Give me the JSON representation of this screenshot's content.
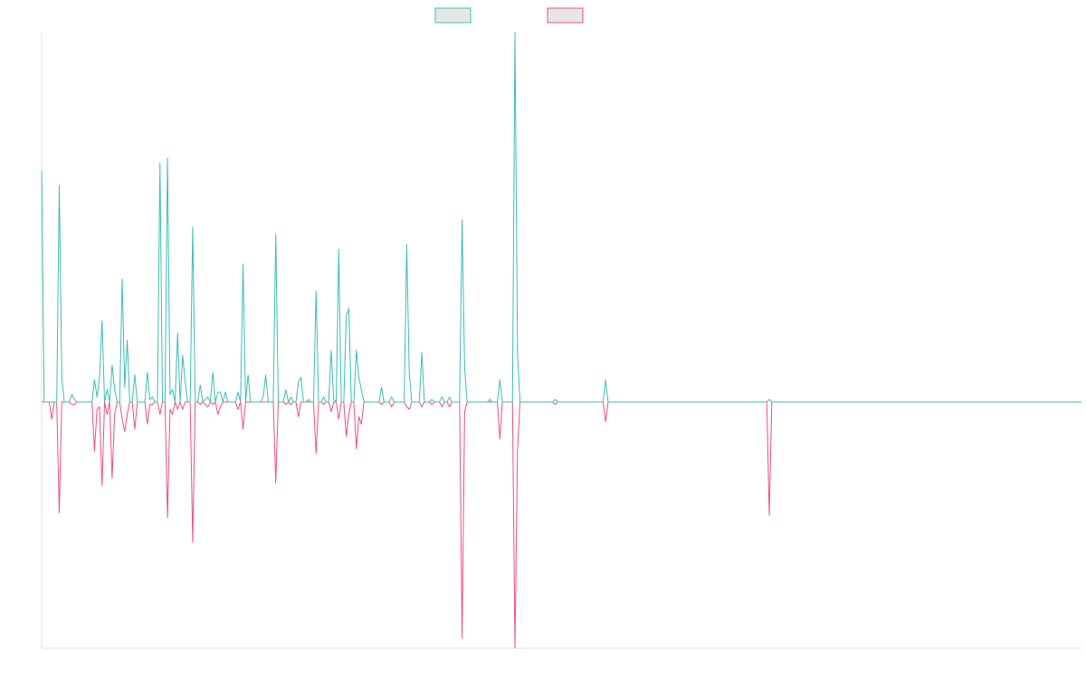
{
  "chart_data": {
    "type": "line",
    "title": "",
    "xlabel": "",
    "ylabel": "",
    "grid": false,
    "legend": "top-center",
    "ylim": [
      -1.0,
      1.5
    ],
    "colors": {
      "series_a": "#3dbdb4",
      "series_b": "#f0507a",
      "axis": "#e2e2e2",
      "legend_fill": "#e6e6e6"
    },
    "series": [
      {
        "key": "a",
        "values": [
          0.94,
          0,
          0,
          0,
          0,
          0,
          0,
          0.88,
          0.1,
          0,
          0,
          0,
          0.03,
          0.01,
          0,
          0,
          0,
          0,
          0,
          0,
          0,
          0.09,
          0.02,
          0.1,
          0.33,
          0,
          0.05,
          0,
          0.15,
          0.05,
          0,
          0,
          0.5,
          0.06,
          0.25,
          0,
          0,
          0.11,
          0,
          0,
          0,
          0,
          0.12,
          0.01,
          0.02,
          0,
          0,
          0.97,
          0,
          0,
          0.99,
          0.03,
          0.05,
          0,
          0.28,
          0,
          0.19,
          0.08,
          0,
          0,
          0.71,
          0,
          0,
          0.07,
          0,
          0.01,
          0.02,
          0,
          0.12,
          0,
          0.04,
          0.04,
          0,
          0.04,
          0,
          0,
          0,
          0,
          0.04,
          0,
          0.56,
          0,
          0.11,
          0,
          0,
          0,
          0,
          0,
          0.02,
          0.11,
          0,
          0,
          0,
          0.68,
          0,
          0,
          0,
          0.05,
          0,
          0.02,
          0,
          0,
          0.08,
          0.1,
          0,
          0,
          0.01,
          0,
          0,
          0.45,
          0,
          0,
          0.02,
          0,
          0,
          0.21,
          0.01,
          0,
          0.62,
          0,
          0,
          0.35,
          0.38,
          0,
          0,
          0.21,
          0.1,
          0.05,
          0,
          0,
          0,
          0,
          0,
          0,
          0,
          0.06,
          0,
          0,
          0,
          0.02,
          0,
          0,
          0,
          0,
          0,
          0.64,
          0.12,
          0,
          0,
          0,
          0,
          0.2,
          0,
          0,
          0,
          0.01,
          0,
          0,
          0,
          0.02,
          0,
          0,
          0.02,
          0,
          0,
          0,
          0,
          0.74,
          0.14,
          0,
          0,
          0,
          0,
          0,
          0,
          0,
          0,
          0,
          0.01,
          0,
          0,
          0,
          0.09,
          0,
          0,
          0,
          0,
          0,
          1.5,
          0.2,
          0,
          0,
          0,
          0,
          0,
          0,
          0,
          0,
          0,
          0,
          0,
          0,
          0,
          0,
          0.01,
          0,
          0,
          0,
          0,
          0,
          0,
          0,
          0,
          0,
          0,
          0,
          0,
          0,
          0,
          0,
          0,
          0,
          0,
          0,
          0.09,
          0,
          0,
          0,
          0,
          0,
          0,
          0,
          0,
          0,
          0,
          0,
          0,
          0,
          0,
          0,
          0,
          0,
          0,
          0,
          0,
          0,
          0,
          0,
          0,
          0,
          0,
          0,
          0,
          0,
          0,
          0,
          0,
          0,
          0,
          0,
          0,
          0,
          0,
          0,
          0,
          0,
          0,
          0,
          0,
          0,
          0,
          0,
          0,
          0,
          0,
          0,
          0,
          0,
          0,
          0,
          0,
          0,
          0,
          0,
          0,
          0,
          0,
          0,
          0,
          0.01,
          0,
          0,
          0,
          0,
          0,
          0,
          0,
          0,
          0,
          0,
          0,
          0,
          0,
          0,
          0,
          0,
          0,
          0,
          0,
          0,
          0,
          0,
          0,
          0,
          0,
          0,
          0,
          0,
          0,
          0,
          0,
          0,
          0,
          0,
          0,
          0,
          0,
          0,
          0,
          0,
          0,
          0,
          0,
          0,
          0,
          0,
          0,
          0,
          0,
          0,
          0,
          0,
          0,
          0,
          0,
          0,
          0,
          0,
          0,
          0,
          0,
          0,
          0,
          0,
          0,
          0,
          0,
          0,
          0,
          0,
          0,
          0,
          0,
          0,
          0,
          0,
          0,
          0,
          0,
          0,
          0,
          0,
          0,
          0,
          0,
          0,
          0,
          0,
          0,
          0,
          0,
          0,
          0,
          0,
          0,
          0,
          0,
          0,
          0,
          0,
          0,
          0,
          0,
          0,
          0,
          0,
          0,
          0,
          0,
          0,
          0,
          0,
          0,
          0,
          0,
          0,
          0,
          0,
          0,
          0,
          0,
          0,
          0,
          0
        ]
      },
      {
        "key": "b",
        "values": [
          0,
          0,
          0,
          0,
          -0.07,
          0,
          0,
          -0.45,
          0,
          0,
          0,
          0,
          -0.01,
          -0.01,
          0,
          0,
          0,
          0,
          0,
          0,
          0,
          -0.2,
          -0.03,
          -0.02,
          -0.34,
          0,
          -0.05,
          0,
          -0.31,
          -0.05,
          0,
          0,
          -0.07,
          -0.12,
          -0.05,
          0,
          0,
          -0.11,
          0,
          0,
          0,
          0,
          -0.09,
          -0.01,
          -0.01,
          0,
          0,
          -0.05,
          0,
          0,
          -0.47,
          -0.03,
          -0.05,
          0,
          -0.03,
          0,
          -0.03,
          0,
          0,
          0,
          -0.57,
          0,
          0,
          -0.01,
          0,
          -0.01,
          -0.02,
          0,
          -0.01,
          0,
          -0.05,
          -0.02,
          0,
          0,
          0,
          0,
          0,
          0,
          -0.03,
          0,
          -0.11,
          0,
          0,
          0,
          0,
          0,
          0,
          0,
          0,
          0,
          0,
          0,
          0,
          -0.33,
          0,
          0,
          0,
          -0.01,
          0,
          -0.01,
          0,
          0,
          -0.06,
          0,
          0,
          0,
          0,
          0,
          0,
          -0.21,
          0,
          0,
          -0.01,
          0,
          0,
          -0.04,
          0,
          0,
          -0.07,
          0,
          0,
          -0.14,
          -0.05,
          0,
          0,
          -0.19,
          -0.06,
          -0.09,
          0,
          0,
          0,
          0,
          0,
          0,
          0,
          -0.01,
          0,
          0,
          0,
          -0.02,
          0,
          0,
          0,
          0,
          0,
          -0.02,
          -0.03,
          0,
          0,
          0,
          0,
          -0.02,
          0,
          0,
          0,
          -0.01,
          0,
          0,
          0,
          -0.02,
          0,
          0,
          -0.02,
          0,
          0,
          0,
          0,
          -0.96,
          -0.04,
          0,
          0,
          0,
          0,
          0,
          0,
          0,
          0,
          0,
          0,
          0,
          0,
          0,
          -0.15,
          0,
          0,
          0,
          0,
          0,
          -1.0,
          -0.2,
          0,
          0,
          0,
          0,
          0,
          0,
          0,
          0,
          0,
          0,
          0,
          0,
          0,
          0,
          -0.01,
          0,
          0,
          0,
          0,
          0,
          0,
          0,
          0,
          0,
          0,
          0,
          0,
          0,
          0,
          0,
          0,
          0,
          0,
          0,
          -0.08,
          0,
          0,
          0,
          0,
          0,
          0,
          0,
          0,
          0,
          0,
          0,
          0,
          0,
          0,
          0,
          0,
          0,
          0,
          0,
          0,
          0,
          0,
          0,
          0,
          0,
          0,
          0,
          0,
          0,
          0,
          0,
          0,
          0,
          0,
          0,
          0,
          0,
          0,
          0,
          0,
          0,
          0,
          0,
          0,
          0,
          0,
          0,
          0,
          0,
          0,
          0,
          0,
          0,
          0,
          0,
          0,
          0,
          0,
          0,
          0,
          0,
          0,
          0,
          0,
          -0.46,
          0,
          0,
          0,
          0,
          0,
          0,
          0,
          0,
          0,
          0,
          0,
          0,
          0,
          0,
          0,
          0,
          0,
          0,
          0,
          0,
          0,
          0,
          0,
          0,
          0,
          0,
          0,
          0,
          0,
          0,
          0,
          0,
          0,
          0,
          0,
          0,
          0,
          0,
          0,
          0,
          0,
          0,
          0,
          0,
          0,
          0,
          0,
          0,
          0,
          0,
          0,
          0,
          0,
          0,
          0,
          0,
          0,
          0,
          0,
          0,
          0,
          0,
          0,
          0,
          0,
          0,
          0,
          0,
          0,
          0,
          0,
          0,
          0,
          0,
          0,
          0,
          0,
          0,
          0,
          0,
          0,
          0,
          0,
          0,
          0,
          0,
          0,
          0,
          0,
          0,
          0,
          0,
          0,
          0,
          0,
          0,
          0,
          0,
          0,
          0,
          0,
          0,
          0,
          0,
          0,
          0,
          0,
          0,
          0,
          0,
          0,
          0,
          0,
          0,
          0,
          0,
          0,
          0,
          0,
          0,
          0,
          0,
          0,
          0
        ]
      }
    ]
  }
}
